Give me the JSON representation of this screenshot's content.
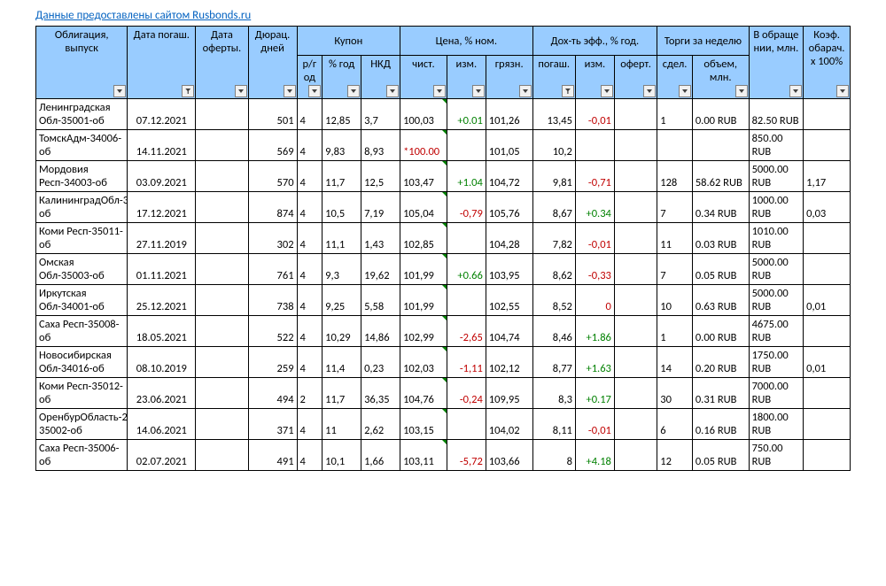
{
  "source_link": "Данные предоставлены сайтом Rusbonds.ru",
  "colors": {
    "header_bg": "#99ccff",
    "border": "#000000",
    "link": "#0563c1",
    "pos_change": "#008000",
    "neg_change": "#c00000",
    "corner_marker": "#008000"
  },
  "headers": {
    "bond": "Облигация, выпуск",
    "mat_date": "Дата погаш.",
    "offer_date": "Дата оферты.",
    "duration": "Дюрац. дней",
    "coupon_group": "Купон",
    "coupon_rg": "р/г од",
    "coupon_year": "% год",
    "coupon_nkd": "НКД",
    "price_group": "Цена, % ном.",
    "price_clean": "чист.",
    "price_chg": "изм.",
    "price_dirty": "грязн.",
    "yield_group": "Дох-ть эфф., % год.",
    "yield_mat": "погаш.",
    "yield_chg": "изм.",
    "yield_off": "оферт.",
    "trades_group": "Торги за неделю",
    "trades_cnt": "сдел.",
    "trades_vol": "объем, млн.",
    "circulation": "В обраще нии, млн.",
    "coef": "Коэф. обарач. x 100%"
  },
  "rows": [
    {
      "name": "Ленинградская Обл-35001-об",
      "mat": "07.12.2021",
      "offer": "",
      "dur": "501",
      "rg": "4",
      "yr": "12,85",
      "nkd": "3,7",
      "clean": "100,03",
      "clean_corner": true,
      "pchg": "+0.01",
      "pchg_sign": "pos",
      "dirty": "101,26",
      "y_mat": "13,45",
      "ychg": "-0,01",
      "ychg_sign": "neg",
      "y_off": "",
      "sdel": "1",
      "vol": "0.00 RUB",
      "circ": "82.50 RUB",
      "coef": ""
    },
    {
      "name": "ТомскАдм-34006-об",
      "mat": "14.11.2021",
      "offer": "",
      "dur": "569",
      "rg": "4",
      "yr": "9,83",
      "nkd": "8,93",
      "clean": "*100.00",
      "clean_star": true,
      "clean_corner": true,
      "pchg": "",
      "pchg_sign": "",
      "dirty": "101,05",
      "y_mat": "10,2",
      "ychg": "",
      "ychg_sign": "",
      "y_off": "",
      "sdel": "",
      "vol": "",
      "circ": "850.00 RUB",
      "coef": ""
    },
    {
      "name": "Мордовия Респ-34003-об",
      "mat": "03.09.2021",
      "offer": "",
      "dur": "570",
      "rg": "4",
      "yr": "11,7",
      "nkd": "12,5",
      "clean": "103,47",
      "clean_corner": true,
      "pchg": "+1.04",
      "pchg_sign": "pos",
      "dirty": "104,72",
      "y_mat": "9,81",
      "ychg": "-0,71",
      "ychg_sign": "neg",
      "y_off": "",
      "sdel": "128",
      "vol": "58.62 RUB",
      "circ": "5000.00 RUB",
      "coef": "1,17"
    },
    {
      "name": "КалининградОбл-34001-об",
      "mat": "17.12.2021",
      "offer": "",
      "dur": "874",
      "rg": "4",
      "yr": "10,5",
      "nkd": "7,19",
      "clean": "105,04",
      "clean_corner": true,
      "pchg": "-0,79",
      "pchg_sign": "neg",
      "dirty": "105,76",
      "y_mat": "8,67",
      "ychg": "+0.34",
      "ychg_sign": "pos",
      "y_off": "",
      "sdel": "7",
      "vol": "0.34 RUB",
      "circ": "1000.00 RUB",
      "coef": "0,03"
    },
    {
      "name": "Коми Респ-35011-об",
      "mat": "27.11.2019",
      "offer": "",
      "dur": "302",
      "rg": "4",
      "yr": "11,1",
      "nkd": "1,43",
      "clean": "102,85",
      "clean_corner": true,
      "pchg": "",
      "pchg_sign": "",
      "dirty": "104,28",
      "y_mat": "7,82",
      "ychg": "-0,01",
      "ychg_sign": "neg",
      "y_off": "",
      "sdel": "11",
      "vol": "0.03 RUB",
      "circ": "1010.00 RUB",
      "coef": ""
    },
    {
      "name": "Омская Обл-35003-об",
      "mat": "01.11.2021",
      "offer": "",
      "dur": "761",
      "rg": "4",
      "yr": "9,3",
      "nkd": "19,62",
      "clean": "101,99",
      "clean_corner": true,
      "pchg": "+0.66",
      "pchg_sign": "pos",
      "dirty": "103,95",
      "y_mat": "8,62",
      "ychg": "-0,33",
      "ychg_sign": "neg",
      "y_off": "",
      "sdel": "7",
      "vol": "0.05 RUB",
      "circ": "5000.00 RUB",
      "coef": ""
    },
    {
      "name": "Иркутская Обл-34001-об",
      "mat": "25.12.2021",
      "offer": "",
      "dur": "738",
      "rg": "4",
      "yr": "9,25",
      "nkd": "5,58",
      "clean": "101,99",
      "clean_corner": true,
      "pchg": "",
      "pchg_sign": "",
      "dirty": "102,55",
      "y_mat": "8,52",
      "ychg": "0",
      "ychg_sign": "neg",
      "y_off": "",
      "sdel": "10",
      "vol": "0.63 RUB",
      "circ": "5000.00 RUB",
      "coef": "0,01"
    },
    {
      "name": "Саха Респ-35008-об",
      "mat": "18.05.2021",
      "offer": "",
      "dur": "522",
      "rg": "4",
      "yr": "10,29",
      "nkd": "14,86",
      "clean": "102,99",
      "clean_corner": true,
      "pchg": "-2,65",
      "pchg_sign": "neg",
      "dirty": "104,74",
      "y_mat": "8,46",
      "ychg": "+1.86",
      "ychg_sign": "pos",
      "y_off": "",
      "sdel": "1",
      "vol": "0.00 RUB",
      "circ": "4675.00 RUB",
      "coef": ""
    },
    {
      "name": "Новосибирская Обл-34016-об",
      "mat": "08.10.2019",
      "offer": "",
      "dur": "259",
      "rg": "4",
      "yr": "11,4",
      "nkd": "0,23",
      "clean": "102,03",
      "clean_corner": true,
      "pchg": "-1,11",
      "pchg_sign": "neg",
      "dirty": "102,12",
      "y_mat": "8,77",
      "ychg": "+1.63",
      "ychg_sign": "pos",
      "y_off": "",
      "sdel": "14",
      "vol": "0.20 RUB",
      "circ": "1750.00 RUB",
      "coef": "0,01"
    },
    {
      "name": "Коми Респ-35012-об",
      "mat": "23.06.2021",
      "offer": "",
      "dur": "494",
      "rg": "2",
      "yr": "11,7",
      "nkd": "36,35",
      "clean": "104,76",
      "clean_corner": true,
      "pchg": "-0,24",
      "pchg_sign": "neg",
      "dirty": "109,95",
      "y_mat": "8,3",
      "ychg": "+0.17",
      "ychg_sign": "pos",
      "y_off": "",
      "sdel": "30",
      "vol": "0.31 RUB",
      "circ": "7000.00 RUB",
      "coef": ""
    },
    {
      "name": "ОренбурОбласть-2-35002-об",
      "mat": "14.06.2021",
      "offer": "",
      "dur": "371",
      "rg": "4",
      "yr": "11",
      "nkd": "2,62",
      "clean": "103,15",
      "clean_corner": true,
      "pchg": "",
      "pchg_sign": "",
      "dirty": "104,02",
      "y_mat": "8,11",
      "ychg": "-0,01",
      "ychg_sign": "neg",
      "y_off": "",
      "sdel": "6",
      "vol": "0.16 RUB",
      "circ": "1800.00 RUB",
      "coef": ""
    },
    {
      "name": "Саха Респ-35006-об",
      "mat": "02.07.2021",
      "offer": "",
      "dur": "491",
      "rg": "4",
      "yr": "10,1",
      "nkd": "1,66",
      "clean": "103,11",
      "clean_corner": true,
      "pchg": "-5,72",
      "pchg_sign": "neg",
      "dirty": "103,66",
      "y_mat": "8",
      "ychg": "+4.18",
      "ychg_sign": "pos",
      "y_off": "",
      "sdel": "12",
      "vol": "0.05 RUB",
      "circ": "750.00 RUB",
      "coef": ""
    }
  ]
}
